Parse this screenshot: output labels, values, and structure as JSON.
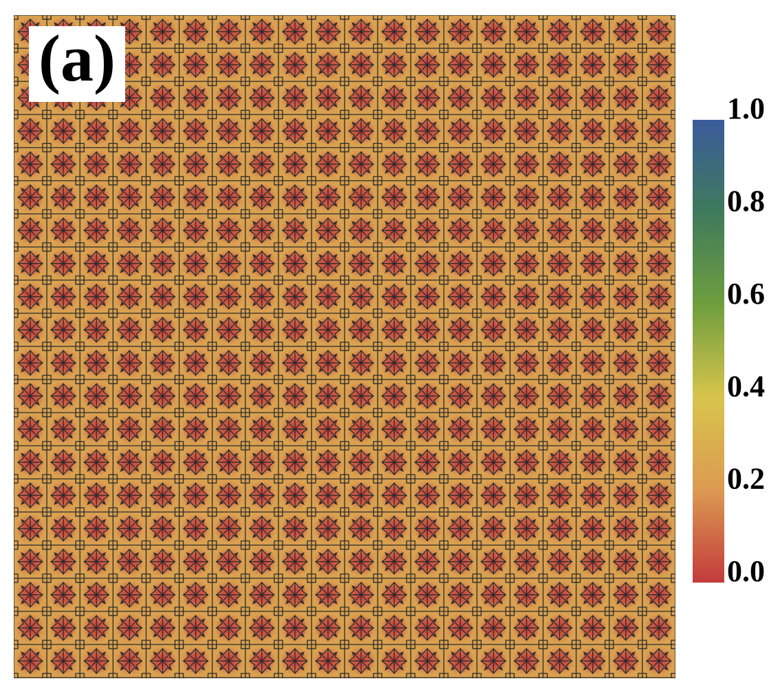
{
  "chart_data": {
    "type": "colormap-image",
    "title": "(a)",
    "colorbar": {
      "lim": [
        0,
        1
      ],
      "ticks": [
        {
          "value": 0,
          "label": "0.0"
        },
        {
          "value": 0.2,
          "label": "0.2"
        },
        {
          "value": 0.4,
          "label": "0.4"
        },
        {
          "value": 0.6,
          "label": "0.6"
        },
        {
          "value": 0.8,
          "label": "0.8"
        },
        {
          "value": 1,
          "label": "1.0"
        }
      ],
      "colormap": [
        "#c23b3c",
        "#dc9a52",
        "#d8c44c",
        "#6f9e3e",
        "#3f7a5c",
        "#3b5b9b"
      ]
    }
  }
}
